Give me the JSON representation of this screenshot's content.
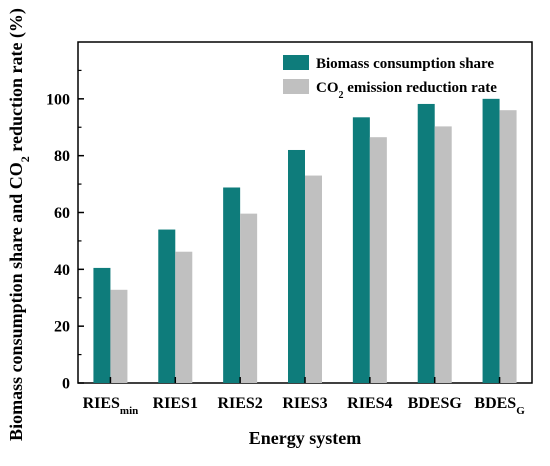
{
  "chart_data": {
    "type": "bar",
    "xlabel": "Energy system",
    "ylabel_parts": [
      {
        "text": "Biomass consumption share and CO",
        "sub": false
      },
      {
        "text": "2",
        "sub": true
      },
      {
        "text": " reduction rate (%)",
        "sub": false
      }
    ],
    "categories": [
      {
        "base": "RIES",
        "sub": "min"
      },
      {
        "base": "RIES1",
        "sub": ""
      },
      {
        "base": "RIES2",
        "sub": ""
      },
      {
        "base": "RIES3",
        "sub": ""
      },
      {
        "base": "RIES4",
        "sub": ""
      },
      {
        "base": "BDESG",
        "sub": ""
      },
      {
        "base": "BDES",
        "sub": "G"
      }
    ],
    "series": [
      {
        "name": "Biomass consumption share",
        "name_parts": [
          {
            "text": "Biomass consumption share",
            "sub": false
          }
        ],
        "color": "#0e7c7b",
        "values": [
          40.5,
          54,
          68.8,
          82,
          93.5,
          98.2,
          100
        ]
      },
      {
        "name": "CO2 emission reduction rate",
        "name_parts": [
          {
            "text": "CO",
            "sub": false
          },
          {
            "text": "2",
            "sub": true
          },
          {
            "text": " emission reduction rate",
            "sub": false
          }
        ],
        "color": "#c0c0c0",
        "values": [
          32.8,
          46.2,
          59.6,
          73,
          86.5,
          90.3,
          96
        ]
      }
    ],
    "ylim": [
      0,
      120
    ],
    "yticks": [
      0,
      20,
      40,
      60,
      80,
      100
    ],
    "grid": false,
    "legend_position": "top-right"
  }
}
